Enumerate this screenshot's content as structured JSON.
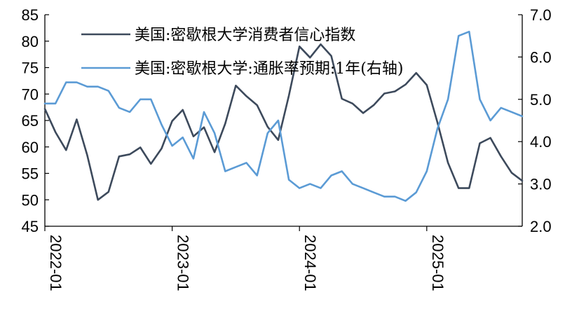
{
  "chart_data": {
    "type": "line",
    "x": [
      "2022-01",
      "2022-02",
      "2022-03",
      "2022-04",
      "2022-05",
      "2022-06",
      "2022-07",
      "2022-08",
      "2022-09",
      "2022-10",
      "2022-11",
      "2022-12",
      "2023-01",
      "2023-02",
      "2023-03",
      "2023-04",
      "2023-05",
      "2023-06",
      "2023-07",
      "2023-08",
      "2023-09",
      "2023-10",
      "2023-11",
      "2023-12",
      "2024-01",
      "2024-02",
      "2024-03",
      "2024-04",
      "2024-05",
      "2024-06",
      "2024-07",
      "2024-08",
      "2024-09",
      "2024-10",
      "2024-11",
      "2024-12",
      "2025-01",
      "2025-02",
      "2025-03",
      "2025-04",
      "2025-05",
      "2025-06",
      "2025-07",
      "2025-08",
      "2025-09",
      "2025-10"
    ],
    "x_ticks": [
      "2022-01",
      "2023-01",
      "2024-01",
      "2025-01"
    ],
    "series": [
      {
        "name": "美国:密歇根大学消费者信心指数",
        "axis": "left",
        "color": "#3d4a5c",
        "values": [
          67.2,
          62.8,
          59.4,
          65.2,
          58.4,
          50.0,
          51.5,
          58.2,
          58.6,
          59.9,
          56.8,
          59.7,
          64.9,
          67.0,
          62.0,
          63.7,
          59.0,
          64.4,
          71.6,
          69.6,
          67.9,
          63.8,
          61.3,
          69.7,
          79.0,
          76.9,
          79.4,
          77.2,
          69.1,
          68.2,
          66.4,
          67.9,
          70.1,
          70.5,
          71.8,
          74.0,
          71.7,
          64.7,
          57.0,
          52.2,
          52.2,
          60.7,
          61.7,
          58.2,
          55.1,
          53.6
        ]
      },
      {
        "name": "美国:密歇根大学:通胀率预期:1年(右轴)",
        "axis": "right",
        "color": "#5b9bd5",
        "values": [
          4.9,
          4.9,
          5.4,
          5.4,
          5.3,
          5.3,
          5.2,
          4.8,
          4.7,
          5.0,
          5.0,
          4.4,
          3.9,
          4.1,
          3.6,
          4.7,
          4.2,
          3.3,
          3.4,
          3.5,
          3.2,
          4.2,
          4.5,
          3.1,
          2.9,
          3.0,
          2.9,
          3.2,
          3.3,
          3.0,
          2.9,
          2.8,
          2.7,
          2.7,
          2.6,
          2.8,
          3.3,
          4.3,
          5.0,
          6.5,
          6.6,
          5.0,
          4.5,
          4.8,
          4.7,
          4.6
        ]
      }
    ],
    "y_left": {
      "lim": [
        45,
        85
      ],
      "ticks": [
        45,
        50,
        55,
        60,
        65,
        70,
        75,
        80,
        85
      ]
    },
    "y_right": {
      "lim": [
        2.0,
        7.0
      ],
      "ticks": [
        "2.0",
        "3.0",
        "4.0",
        "5.0",
        "6.0",
        "7.0"
      ]
    },
    "grid": false,
    "legend": "top"
  }
}
